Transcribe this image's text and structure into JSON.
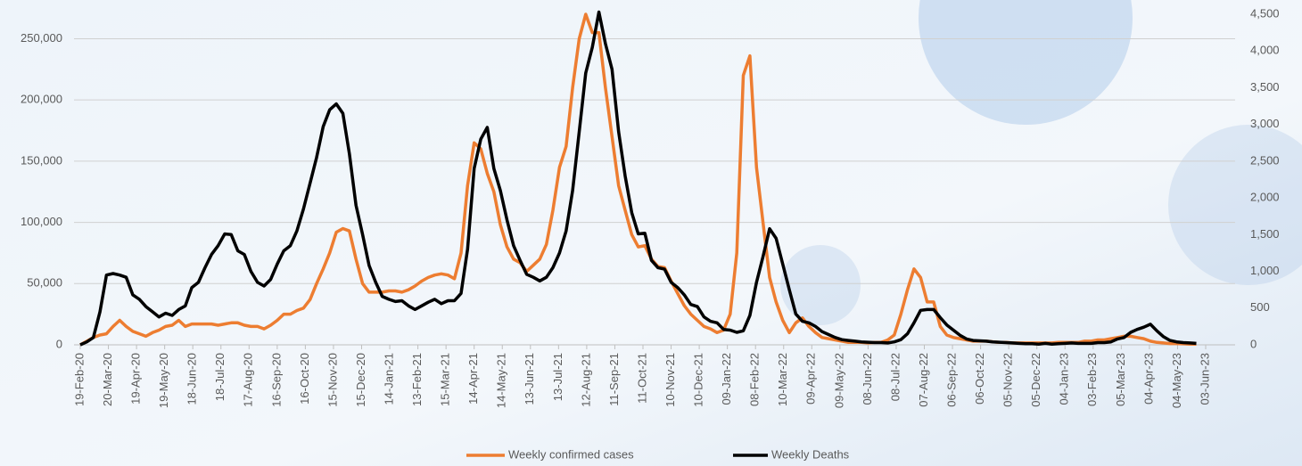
{
  "chart_data": {
    "type": "line",
    "x": [
      "19-Feb-20",
      "26-Feb-20",
      "04-Mar-20",
      "11-Mar-20",
      "18-Mar-20",
      "25-Mar-20",
      "01-Apr-20",
      "08-Apr-20",
      "15-Apr-20",
      "22-Apr-20",
      "29-Apr-20",
      "06-May-20",
      "13-May-20",
      "20-May-20",
      "27-May-20",
      "03-Jun-20",
      "10-Jun-20",
      "17-Jun-20",
      "24-Jun-20",
      "01-Jul-20",
      "08-Jul-20",
      "15-Jul-20",
      "22-Jul-20",
      "29-Jul-20",
      "05-Aug-20",
      "12-Aug-20",
      "19-Aug-20",
      "26-Aug-20",
      "02-Sep-20",
      "09-Sep-20",
      "16-Sep-20",
      "23-Sep-20",
      "30-Sep-20",
      "07-Oct-20",
      "14-Oct-20",
      "21-Oct-20",
      "28-Oct-20",
      "04-Nov-20",
      "11-Nov-20",
      "18-Nov-20",
      "25-Nov-20",
      "02-Dec-20",
      "09-Dec-20",
      "16-Dec-20",
      "23-Dec-20",
      "30-Dec-20",
      "06-Jan-21",
      "13-Jan-21",
      "20-Jan-21",
      "27-Jan-21",
      "03-Feb-21",
      "10-Feb-21",
      "17-Feb-21",
      "24-Feb-21",
      "03-Mar-21",
      "10-Mar-21",
      "17-Mar-21",
      "24-Mar-21",
      "31-Mar-21",
      "07-Apr-21",
      "14-Apr-21",
      "21-Apr-21",
      "28-Apr-21",
      "05-May-21",
      "12-May-21",
      "19-May-21",
      "26-May-21",
      "02-Jun-21",
      "09-Jun-21",
      "16-Jun-21",
      "23-Jun-21",
      "30-Jun-21",
      "07-Jul-21",
      "14-Jul-21",
      "21-Jul-21",
      "28-Jul-21",
      "04-Aug-21",
      "11-Aug-21",
      "18-Aug-21",
      "25-Aug-21",
      "01-Sep-21",
      "08-Sep-21",
      "15-Sep-21",
      "22-Sep-21",
      "29-Sep-21",
      "06-Oct-21",
      "13-Oct-21",
      "20-Oct-21",
      "27-Oct-21",
      "03-Nov-21",
      "10-Nov-21",
      "17-Nov-21",
      "24-Nov-21",
      "01-Dec-21",
      "08-Dec-21",
      "15-Dec-21",
      "22-Dec-21",
      "29-Dec-21",
      "05-Jan-22",
      "12-Jan-22",
      "19-Jan-22",
      "26-Jan-22",
      "02-Feb-22",
      "09-Feb-22",
      "16-Feb-22",
      "23-Feb-22",
      "02-Mar-22",
      "09-Mar-22",
      "16-Mar-22",
      "23-Mar-22",
      "30-Mar-22",
      "06-Apr-22",
      "13-Apr-22",
      "20-Apr-22",
      "27-Apr-22",
      "04-May-22",
      "11-May-22",
      "18-May-22",
      "25-May-22",
      "01-Jun-22",
      "08-Jun-22",
      "15-Jun-22",
      "22-Jun-22",
      "29-Jun-22",
      "06-Jul-22",
      "13-Jul-22",
      "20-Jul-22",
      "27-Jul-22",
      "03-Aug-22",
      "10-Aug-22",
      "17-Aug-22",
      "24-Aug-22",
      "31-Aug-22",
      "07-Sep-22",
      "14-Sep-22",
      "21-Sep-22",
      "28-Sep-22",
      "05-Oct-22",
      "12-Oct-22",
      "19-Oct-22",
      "26-Oct-22",
      "02-Nov-22",
      "09-Nov-22",
      "16-Nov-22",
      "23-Nov-22",
      "30-Nov-22",
      "07-Dec-22",
      "14-Dec-22",
      "21-Dec-22",
      "28-Dec-22",
      "04-Jan-23",
      "11-Jan-23",
      "18-Jan-23",
      "25-Jan-23",
      "01-Feb-23",
      "08-Feb-23",
      "15-Feb-23",
      "22-Feb-23",
      "01-Mar-23",
      "08-Mar-23",
      "15-Mar-23",
      "22-Mar-23",
      "29-Mar-23",
      "05-Apr-23",
      "12-Apr-23",
      "19-Apr-23",
      "26-Apr-23",
      "03-May-23",
      "10-May-23",
      "17-May-23",
      "24-May-23"
    ],
    "xlim": [
      "19-Feb-20",
      "03-Jun-23"
    ],
    "xticks": [
      "19-Feb-20",
      "20-Mar-20",
      "19-Apr-20",
      "19-May-20",
      "18-Jun-20",
      "18-Jul-20",
      "17-Aug-20",
      "16-Sep-20",
      "16-Oct-20",
      "15-Nov-20",
      "15-Dec-20",
      "14-Jan-21",
      "13-Feb-21",
      "15-Mar-21",
      "14-Apr-21",
      "14-May-21",
      "13-Jun-21",
      "13-Jul-21",
      "12-Aug-21",
      "11-Sep-21",
      "11-Oct-21",
      "10-Nov-21",
      "10-Dec-21",
      "09-Jan-22",
      "08-Feb-22",
      "10-Mar-22",
      "09-Apr-22",
      "09-May-22",
      "08-Jun-22",
      "08-Jul-22",
      "07-Aug-22",
      "06-Sep-22",
      "06-Oct-22",
      "05-Nov-22",
      "05-Dec-22",
      "04-Jan-23",
      "03-Feb-23",
      "05-Mar-23",
      "04-Apr-23",
      "04-May-23",
      "03-Jun-23"
    ],
    "ylim": [
      0,
      270000
    ],
    "yticks": [
      0,
      {
        "value": 50000,
        "label": "50,000"
      },
      {
        "value": 100000,
        "label": "100,000"
      },
      {
        "value": 150000,
        "label": "150,000"
      },
      {
        "value": 200000,
        "label": "200,000"
      },
      {
        "value": 250000,
        "label": "250,000"
      }
    ],
    "y2lim": [
      0,
      4500
    ],
    "y2ticks": [
      0,
      500,
      {
        "value": 1000,
        "label": "1,000"
      },
      {
        "value": 1500,
        "label": "1,500"
      },
      {
        "value": 2000,
        "label": "2,000"
      },
      {
        "value": 2500,
        "label": "2,500"
      },
      {
        "value": 3000,
        "label": "3,000"
      },
      {
        "value": 3500,
        "label": "3,500"
      },
      {
        "value": 4000,
        "label": "4,000"
      },
      {
        "value": 4500,
        "label": "4,500"
      }
    ],
    "grid": true,
    "legend": "bottom",
    "series": [
      {
        "name": "Weekly confirmed cases",
        "color": "#ed7d31",
        "values": [
          0,
          3000,
          6000,
          8000,
          9000,
          15000,
          20000,
          15000,
          11000,
          9000,
          7000,
          10000,
          12000,
          15000,
          16000,
          20000,
          15000,
          17000,
          17000,
          17000,
          17000,
          16000,
          17000,
          18000,
          18000,
          16000,
          15000,
          15000,
          13000,
          16000,
          20000,
          25000,
          25000,
          28000,
          30000,
          37000,
          50000,
          62000,
          75000,
          92000,
          95000,
          93000,
          70000,
          50000,
          43000,
          43000,
          43000,
          44000,
          44000,
          43000,
          45000,
          48000,
          52000,
          55000,
          57000,
          58000,
          57000,
          54000,
          75000,
          130000,
          165000,
          160000,
          140000,
          125000,
          98000,
          80000,
          70000,
          67000,
          60000,
          65000,
          70000,
          82000,
          110000,
          145000,
          162000,
          210000,
          250000,
          270000,
          255000,
          255000,
          210000,
          170000,
          130000,
          110000,
          90000,
          80000,
          81000,
          70000,
          64000,
          63000,
          52000,
          42000,
          32000,
          25000,
          20000,
          15000,
          13000,
          10000,
          12000,
          25000,
          75000,
          220000,
          236000,
          145000,
          100000,
          55000,
          35000,
          20000,
          10000,
          18000,
          22000,
          15000,
          10000,
          6000,
          5000,
          4000,
          3000,
          2000,
          2000,
          2000,
          1500,
          2000,
          2000,
          4000,
          8000,
          25000,
          45000,
          62000,
          55000,
          35000,
          35000,
          15000,
          8000,
          6000,
          5000,
          4000,
          3000,
          3000,
          3000,
          2500,
          2000,
          2000,
          1500,
          1500,
          1500,
          1500,
          1500,
          1500,
          1500,
          2000,
          2000,
          2000,
          2000,
          3000,
          3000,
          4000,
          4000,
          5000,
          6000,
          7000,
          7000,
          6000,
          5000,
          3000,
          2000,
          1500,
          1000,
          1000,
          800,
          600,
          500
        ]
      },
      {
        "name": "Weekly Deaths",
        "color": "#000000",
        "axis": "y2",
        "values": [
          0,
          40,
          100,
          450,
          950,
          970,
          950,
          920,
          680,
          620,
          520,
          450,
          380,
          430,
          400,
          480,
          530,
          780,
          850,
          1050,
          1230,
          1350,
          1510,
          1500,
          1280,
          1230,
          1000,
          850,
          800,
          890,
          1100,
          1280,
          1350,
          1550,
          1850,
          2200,
          2550,
          2970,
          3200,
          3280,
          3150,
          2600,
          1900,
          1500,
          1080,
          850,
          660,
          620,
          590,
          600,
          530,
          480,
          530,
          580,
          620,
          560,
          600,
          600,
          700,
          1300,
          2400,
          2800,
          2960,
          2400,
          2100,
          1700,
          1350,
          1150,
          960,
          920,
          870,
          920,
          1050,
          1250,
          1550,
          2100,
          2900,
          3700,
          4050,
          4530,
          4100,
          3750,
          2900,
          2300,
          1800,
          1510,
          1520,
          1150,
          1050,
          1030,
          850,
          780,
          680,
          550,
          520,
          380,
          320,
          300,
          210,
          200,
          170,
          190,
          400,
          850,
          1200,
          1580,
          1450,
          1100,
          750,
          420,
          320,
          300,
          250,
          180,
          140,
          100,
          70,
          60,
          50,
          40,
          35,
          30,
          30,
          25,
          40,
          70,
          150,
          300,
          470,
          480,
          480,
          370,
          270,
          200,
          130,
          80,
          60,
          55,
          50,
          40,
          35,
          30,
          25,
          20,
          15,
          15,
          10,
          20,
          10,
          15,
          20,
          25,
          20,
          20,
          20,
          30,
          30,
          40,
          80,
          100,
          170,
          210,
          240,
          280,
          190,
          110,
          60,
          40,
          30,
          25,
          20
        ]
      }
    ]
  }
}
